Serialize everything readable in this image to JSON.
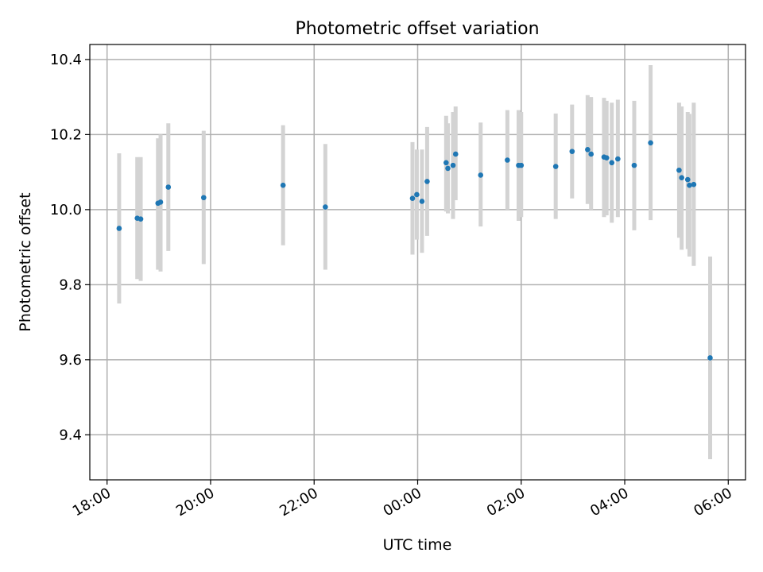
{
  "chart_data": {
    "type": "scatter",
    "title": "Photometric offset variation",
    "xlabel": "UTC time",
    "ylabel": "Photometric offset",
    "x_axis_kind": "time",
    "x_range": [
      "17:40",
      "06:20"
    ],
    "ylim": [
      9.28,
      10.44
    ],
    "x_ticks": [
      "18:00",
      "20:00",
      "22:00",
      "00:00",
      "02:00",
      "04:00",
      "06:00"
    ],
    "y_ticks": [
      "9.4",
      "9.6",
      "9.8",
      "10.0",
      "10.2",
      "10.4"
    ],
    "grid": true,
    "point_color": "#1f77b4",
    "errorbar_color": "#d3d3d3",
    "points": [
      {
        "time": "18:14",
        "y": 9.95,
        "y_low": 9.75,
        "y_high": 10.15
      },
      {
        "time": "18:35",
        "y": 9.977,
        "y_low": 9.815,
        "y_high": 10.14
      },
      {
        "time": "18:39",
        "y": 9.975,
        "y_low": 9.81,
        "y_high": 10.14
      },
      {
        "time": "18:59",
        "y": 10.017,
        "y_low": 9.84,
        "y_high": 10.19
      },
      {
        "time": "19:02",
        "y": 10.02,
        "y_low": 9.835,
        "y_high": 10.2
      },
      {
        "time": "19:11",
        "y": 10.06,
        "y_low": 9.89,
        "y_high": 10.23
      },
      {
        "time": "19:52",
        "y": 10.032,
        "y_low": 9.855,
        "y_high": 10.21
      },
      {
        "time": "21:24",
        "y": 10.065,
        "y_low": 9.905,
        "y_high": 10.225
      },
      {
        "time": "22:13",
        "y": 10.007,
        "y_low": 9.84,
        "y_high": 10.175
      },
      {
        "time": "23:54",
        "y": 10.03,
        "y_low": 9.88,
        "y_high": 10.18
      },
      {
        "time": "23:59",
        "y": 10.04,
        "y_low": 9.92,
        "y_high": 10.16
      },
      {
        "time": "00:05",
        "y": 10.022,
        "y_low": 9.885,
        "y_high": 10.16
      },
      {
        "time": "00:11",
        "y": 10.075,
        "y_low": 9.93,
        "y_high": 10.22
      },
      {
        "time": "00:33",
        "y": 10.125,
        "y_low": 9.995,
        "y_high": 10.25
      },
      {
        "time": "00:35",
        "y": 10.11,
        "y_low": 9.99,
        "y_high": 10.23
      },
      {
        "time": "00:41",
        "y": 10.118,
        "y_low": 9.975,
        "y_high": 10.26
      },
      {
        "time": "00:44",
        "y": 10.148,
        "y_low": 10.025,
        "y_high": 10.275
      },
      {
        "time": "01:13",
        "y": 10.092,
        "y_low": 9.955,
        "y_high": 10.232
      },
      {
        "time": "01:44",
        "y": 10.132,
        "y_low": 10.0,
        "y_high": 10.265
      },
      {
        "time": "01:57",
        "y": 10.118,
        "y_low": 9.97,
        "y_high": 10.265
      },
      {
        "time": "02:00",
        "y": 10.118,
        "y_low": 9.98,
        "y_high": 10.26
      },
      {
        "time": "02:40",
        "y": 10.115,
        "y_low": 9.975,
        "y_high": 10.256
      },
      {
        "time": "02:59",
        "y": 10.155,
        "y_low": 10.03,
        "y_high": 10.28
      },
      {
        "time": "03:17",
        "y": 10.16,
        "y_low": 10.015,
        "y_high": 10.305
      },
      {
        "time": "03:21",
        "y": 10.148,
        "y_low": 10.0,
        "y_high": 10.3
      },
      {
        "time": "03:36",
        "y": 10.14,
        "y_low": 9.98,
        "y_high": 10.298
      },
      {
        "time": "03:39",
        "y": 10.138,
        "y_low": 9.985,
        "y_high": 10.29
      },
      {
        "time": "03:45",
        "y": 10.125,
        "y_low": 9.965,
        "y_high": 10.285
      },
      {
        "time": "03:52",
        "y": 10.135,
        "y_low": 9.98,
        "y_high": 10.293
      },
      {
        "time": "04:11",
        "y": 10.118,
        "y_low": 9.945,
        "y_high": 10.29
      },
      {
        "time": "04:30",
        "y": 10.178,
        "y_low": 9.972,
        "y_high": 10.385
      },
      {
        "time": "05:03",
        "y": 10.105,
        "y_low": 9.925,
        "y_high": 10.285
      },
      {
        "time": "05:06",
        "y": 10.085,
        "y_low": 9.893,
        "y_high": 10.275
      },
      {
        "time": "05:13",
        "y": 10.08,
        "y_low": 9.895,
        "y_high": 10.26
      },
      {
        "time": "05:15",
        "y": 10.065,
        "y_low": 9.875,
        "y_high": 10.255
      },
      {
        "time": "05:20",
        "y": 10.067,
        "y_low": 9.85,
        "y_high": 10.285
      },
      {
        "time": "05:39",
        "y": 9.605,
        "y_low": 9.335,
        "y_high": 9.875
      }
    ]
  }
}
